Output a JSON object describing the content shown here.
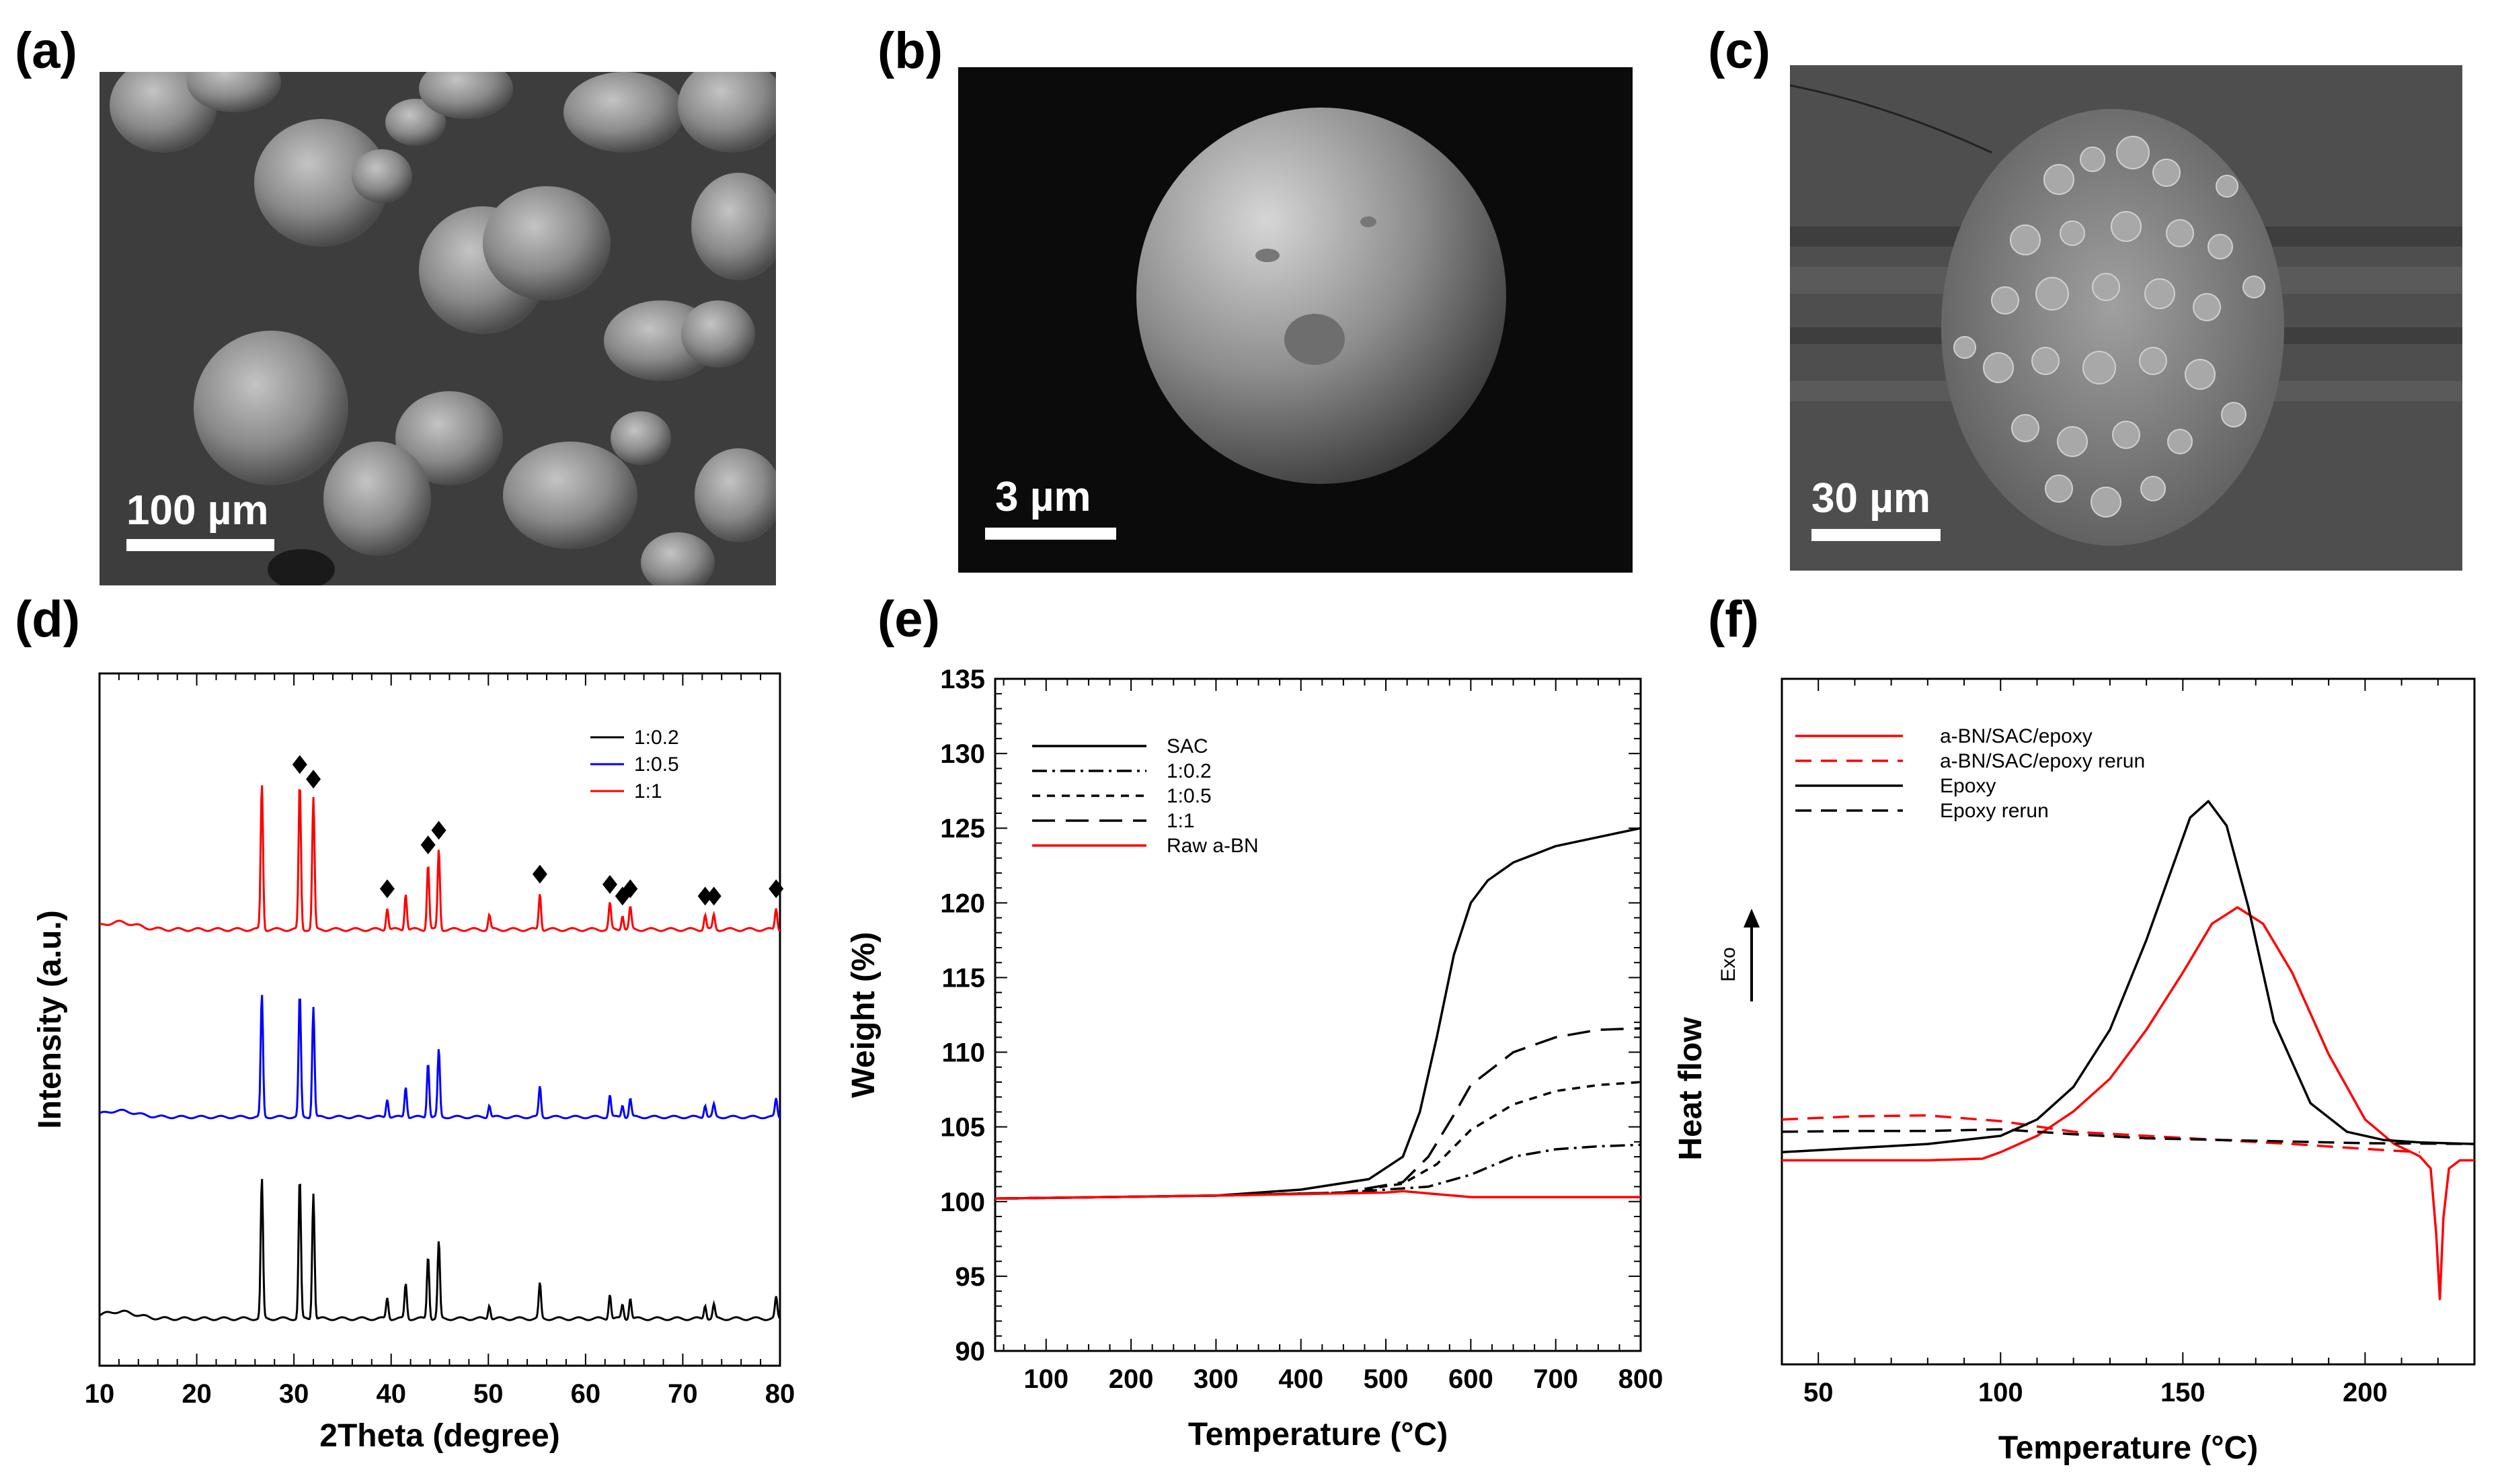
{
  "panels": {
    "a": {
      "label": "(a)",
      "scale_bar": "100 µm"
    },
    "b": {
      "label": "(b)",
      "scale_bar": "3 µm"
    },
    "c": {
      "label": "(c)",
      "scale_bar": "30 µm"
    },
    "d": {
      "label": "(d)"
    },
    "e": {
      "label": "(e)"
    },
    "f": {
      "label": "(f)"
    }
  },
  "chart_data": [
    {
      "type": "line",
      "panel": "d",
      "xlabel": "2Theta (degree)",
      "ylabel": "Intensity (a.u.)",
      "xlim": [
        10,
        80
      ],
      "xticks": [
        10,
        20,
        30,
        40,
        50,
        60,
        70,
        80
      ],
      "legend_position": "top-right",
      "peaks_x": [
        26.7,
        30.6,
        32.0,
        39.6,
        41.5,
        43.8,
        44.9,
        50.1,
        55.3,
        62.5,
        63.8,
        64.6,
        72.3,
        73.2,
        79.6
      ],
      "peaks_h": [
        1.0,
        1.0,
        0.9,
        0.15,
        0.25,
        0.45,
        0.55,
        0.1,
        0.25,
        0.18,
        0.1,
        0.15,
        0.1,
        0.1,
        0.15
      ],
      "marked_peaks_x": [
        30.6,
        32.0,
        39.6,
        43.8,
        44.9,
        55.3,
        62.5,
        63.8,
        64.6,
        72.3,
        73.2,
        79.6
      ],
      "series": [
        {
          "name": "1:0.2",
          "color": "#000000",
          "offset": 0.0,
          "scale": 0.48
        },
        {
          "name": "1:0.5",
          "color": "#0000ff",
          "offset": 1.0,
          "scale": 0.42
        },
        {
          "name": "1:1",
          "color": "#ff0000",
          "offset": 1.93,
          "scale": 0.5
        }
      ]
    },
    {
      "type": "line",
      "panel": "e",
      "xlabel": "Temperature (°C)",
      "ylabel": "Weight (%)",
      "xlim": [
        40,
        800
      ],
      "ylim": [
        90,
        135
      ],
      "xticks": [
        100,
        200,
        300,
        400,
        500,
        600,
        700,
        800
      ],
      "yticks": [
        90,
        95,
        100,
        105,
        110,
        115,
        120,
        125,
        130,
        135
      ],
      "legend_position": "top-left",
      "series": [
        {
          "name": "SAC",
          "color": "#000000",
          "dash": "solid",
          "x": [
            40,
            300,
            400,
            480,
            520,
            540,
            560,
            580,
            600,
            620,
            650,
            700,
            750,
            800
          ],
          "y": [
            100.2,
            100.4,
            100.8,
            101.5,
            103,
            106,
            111,
            116.5,
            120,
            121.5,
            122.7,
            123.8,
            124.4,
            125
          ]
        },
        {
          "name": "1:0.2",
          "color": "#000000",
          "dash": "dashdot",
          "x": [
            40,
            300,
            450,
            550,
            600,
            650,
            700,
            750,
            800
          ],
          "y": [
            100.2,
            100.4,
            100.6,
            101.0,
            101.8,
            103.0,
            103.5,
            103.7,
            103.8
          ]
        },
        {
          "name": "1:0.5",
          "color": "#000000",
          "dash": "shortdash",
          "x": [
            40,
            300,
            450,
            520,
            560,
            600,
            650,
            700,
            750,
            800
          ],
          "y": [
            100.2,
            100.4,
            100.6,
            101.2,
            102.5,
            104.8,
            106.5,
            107.4,
            107.8,
            108.0
          ]
        },
        {
          "name": "1:1",
          "color": "#000000",
          "dash": "longdash",
          "x": [
            40,
            300,
            450,
            520,
            550,
            580,
            600,
            650,
            700,
            750,
            800
          ],
          "y": [
            100.2,
            100.4,
            100.6,
            101.3,
            103.0,
            105.8,
            107.8,
            110.0,
            111.0,
            111.5,
            111.6
          ]
        },
        {
          "name": "Raw a-BN",
          "color": "#ff0000",
          "dash": "solid",
          "x": [
            40,
            300,
            500,
            520,
            560,
            600,
            700,
            800
          ],
          "y": [
            100.2,
            100.4,
            100.6,
            100.7,
            100.5,
            100.3,
            100.3,
            100.3
          ]
        }
      ]
    },
    {
      "type": "line",
      "panel": "f",
      "xlabel": "Temperature (°C)",
      "ylabel": "Heat flow",
      "exo_label": "Exo",
      "xlim": [
        40,
        230
      ],
      "xticks": [
        50,
        100,
        150,
        200
      ],
      "legend_position": "top-left",
      "series": [
        {
          "name": "a-BN/SAC/epoxy",
          "color": "#ff0000",
          "dash": "solid",
          "x": [
            40,
            60,
            80,
            95,
            100,
            110,
            120,
            130,
            140,
            150,
            158,
            165,
            172,
            180,
            190,
            200,
            208,
            215,
            218,
            219.5,
            220.5,
            221.5,
            223,
            226,
            230
          ],
          "y": [
            1.7,
            1.7,
            1.7,
            1.72,
            1.8,
            2.0,
            2.3,
            2.7,
            3.3,
            4.0,
            4.6,
            4.8,
            4.6,
            4.0,
            3.0,
            2.2,
            1.9,
            1.75,
            1.6,
            0.8,
            0.0,
            1.0,
            1.6,
            1.7,
            1.7
          ]
        },
        {
          "name": "a-BN/SAC/epoxy rerun",
          "color": "#ff0000",
          "dash": "dashed",
          "x": [
            40,
            60,
            80,
            100,
            120,
            140,
            160,
            180,
            200,
            215
          ],
          "y": [
            2.2,
            2.24,
            2.25,
            2.18,
            2.05,
            2.0,
            1.95,
            1.9,
            1.84,
            1.8
          ]
        },
        {
          "name": "Epoxy",
          "color": "#000000",
          "dash": "solid",
          "x": [
            40,
            60,
            80,
            100,
            110,
            120,
            130,
            140,
            148,
            152,
            157,
            162,
            168,
            175,
            185,
            195,
            205,
            215,
            230
          ],
          "y": [
            1.8,
            1.85,
            1.9,
            2.0,
            2.2,
            2.6,
            3.3,
            4.4,
            5.4,
            5.9,
            6.1,
            5.8,
            4.8,
            3.4,
            2.4,
            2.05,
            1.95,
            1.92,
            1.9
          ]
        },
        {
          "name": "Epoxy rerun",
          "color": "#000000",
          "dash": "dashed",
          "x": [
            40,
            60,
            80,
            100,
            110,
            120,
            140,
            160,
            180,
            200,
            230
          ],
          "y": [
            2.05,
            2.06,
            2.06,
            2.08,
            2.05,
            2.02,
            1.97,
            1.95,
            1.93,
            1.91,
            1.9
          ]
        }
      ]
    }
  ]
}
